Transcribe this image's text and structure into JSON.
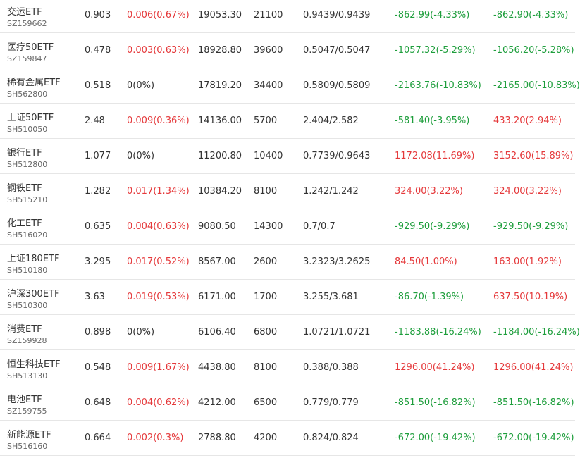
{
  "colors": {
    "up": "#e5393b",
    "down": "#1e9e3c",
    "flat": "#333333"
  },
  "holdings": [
    {
      "name": "交运ETF",
      "code": "SZ159662",
      "price": "0.903",
      "change": "0.006(0.67%)",
      "change_dir": "up",
      "amount": "19053.30",
      "qty": "21100",
      "cost": "0.9439/0.9439",
      "float_pl": "-862.99(-4.33%)",
      "float_dir": "down",
      "total_pl": "-862.90(-4.33%)",
      "total_dir": "down"
    },
    {
      "name": "医疗50ETF",
      "code": "SZ159847",
      "price": "0.478",
      "change": "0.003(0.63%)",
      "change_dir": "up",
      "amount": "18928.80",
      "qty": "39600",
      "cost": "0.5047/0.5047",
      "float_pl": "-1057.32(-5.29%)",
      "float_dir": "down",
      "total_pl": "-1056.20(-5.28%)",
      "total_dir": "down"
    },
    {
      "name": "稀有金属ETF",
      "code": "SH562800",
      "price": "0.518",
      "change": "0(0%)",
      "change_dir": "flat",
      "amount": "17819.20",
      "qty": "34400",
      "cost": "0.5809/0.5809",
      "float_pl": "-2163.76(-10.83%)",
      "float_dir": "down",
      "total_pl": "-2165.00(-10.83%)",
      "total_dir": "down"
    },
    {
      "name": "上证50ETF",
      "code": "SH510050",
      "price": "2.48",
      "change": "0.009(0.36%)",
      "change_dir": "up",
      "amount": "14136.00",
      "qty": "5700",
      "cost": "2.404/2.582",
      "float_pl": "-581.40(-3.95%)",
      "float_dir": "down",
      "total_pl": "433.20(2.94%)",
      "total_dir": "up"
    },
    {
      "name": "银行ETF",
      "code": "SH512800",
      "price": "1.077",
      "change": "0(0%)",
      "change_dir": "flat",
      "amount": "11200.80",
      "qty": "10400",
      "cost": "0.7739/0.9643",
      "float_pl": "1172.08(11.69%)",
      "float_dir": "up",
      "total_pl": "3152.60(15.89%)",
      "total_dir": "up"
    },
    {
      "name": "钢铁ETF",
      "code": "SH515210",
      "price": "1.282",
      "change": "0.017(1.34%)",
      "change_dir": "up",
      "amount": "10384.20",
      "qty": "8100",
      "cost": "1.242/1.242",
      "float_pl": "324.00(3.22%)",
      "float_dir": "up",
      "total_pl": "324.00(3.22%)",
      "total_dir": "up"
    },
    {
      "name": "化工ETF",
      "code": "SH516020",
      "price": "0.635",
      "change": "0.004(0.63%)",
      "change_dir": "up",
      "amount": "9080.50",
      "qty": "14300",
      "cost": "0.7/0.7",
      "float_pl": "-929.50(-9.29%)",
      "float_dir": "down",
      "total_pl": "-929.50(-9.29%)",
      "total_dir": "down"
    },
    {
      "name": "上证180ETF",
      "code": "SH510180",
      "price": "3.295",
      "change": "0.017(0.52%)",
      "change_dir": "up",
      "amount": "8567.00",
      "qty": "2600",
      "cost": "3.2323/3.2625",
      "float_pl": "84.50(1.00%)",
      "float_dir": "up",
      "total_pl": "163.00(1.92%)",
      "total_dir": "up"
    },
    {
      "name": "沪深300ETF",
      "code": "SH510300",
      "price": "3.63",
      "change": "0.019(0.53%)",
      "change_dir": "up",
      "amount": "6171.00",
      "qty": "1700",
      "cost": "3.255/3.681",
      "float_pl": "-86.70(-1.39%)",
      "float_dir": "down",
      "total_pl": "637.50(10.19%)",
      "total_dir": "up"
    },
    {
      "name": "消费ETF",
      "code": "SZ159928",
      "price": "0.898",
      "change": "0(0%)",
      "change_dir": "flat",
      "amount": "6106.40",
      "qty": "6800",
      "cost": "1.0721/1.0721",
      "float_pl": "-1183.88(-16.24%)",
      "float_dir": "down",
      "total_pl": "-1184.00(-16.24%)",
      "total_dir": "down"
    },
    {
      "name": "恒生科技ETF",
      "code": "SH513130",
      "price": "0.548",
      "change": "0.009(1.67%)",
      "change_dir": "up",
      "amount": "4438.80",
      "qty": "8100",
      "cost": "0.388/0.388",
      "float_pl": "1296.00(41.24%)",
      "float_dir": "up",
      "total_pl": "1296.00(41.24%)",
      "total_dir": "up"
    },
    {
      "name": "电池ETF",
      "code": "SZ159755",
      "price": "0.648",
      "change": "0.004(0.62%)",
      "change_dir": "up",
      "amount": "4212.00",
      "qty": "6500",
      "cost": "0.779/0.779",
      "float_pl": "-851.50(-16.82%)",
      "float_dir": "down",
      "total_pl": "-851.50(-16.82%)",
      "total_dir": "down"
    },
    {
      "name": "新能源ETF",
      "code": "SH516160",
      "price": "0.664",
      "change": "0.002(0.3%)",
      "change_dir": "up",
      "amount": "2788.80",
      "qty": "4200",
      "cost": "0.824/0.824",
      "float_pl": "-672.00(-19.42%)",
      "float_dir": "down",
      "total_pl": "-672.00(-19.42%)",
      "total_dir": "down"
    }
  ]
}
